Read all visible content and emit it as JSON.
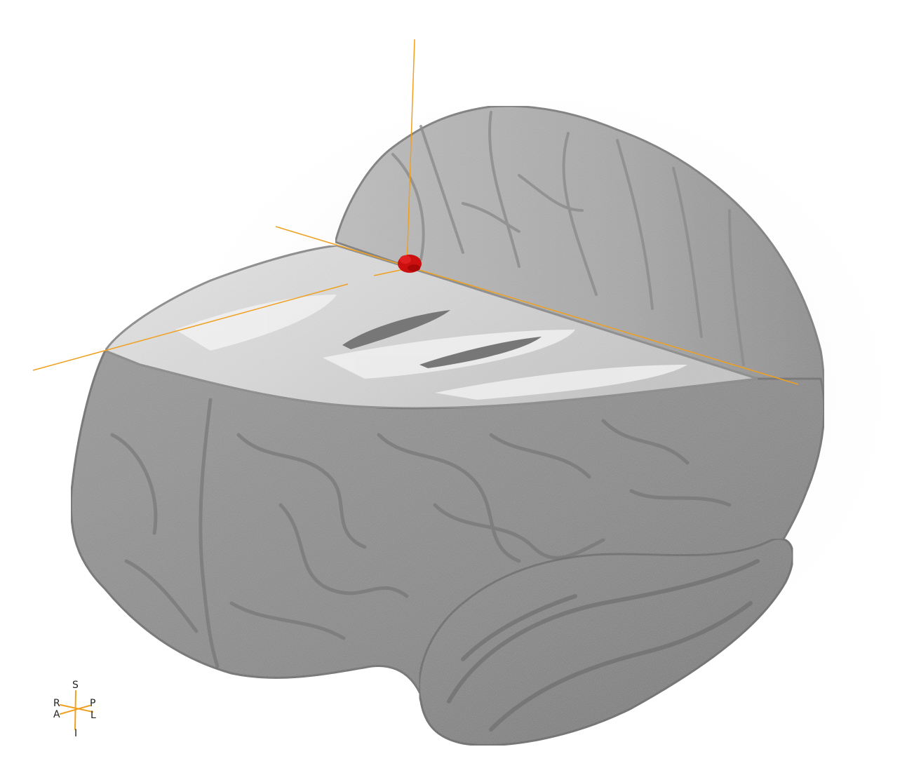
{
  "viewer": {
    "background_color": "#ffffff",
    "surface_color": "#8a8a8a",
    "cut_face_color": "#d6d6d6",
    "crosshair_color": "#f0a020",
    "marker_color": "#cc1010"
  },
  "orientation": {
    "superior": "S",
    "inferior": "I",
    "right": "R",
    "anterior": "A",
    "posterior": "P",
    "left": "L"
  }
}
